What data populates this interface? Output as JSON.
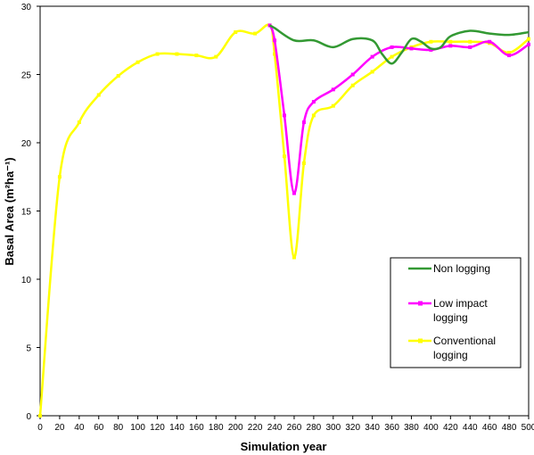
{
  "chart_data": {
    "type": "line",
    "xlabel": "Simulation year",
    "ylabel": "Basal Area (m²ha⁻¹)",
    "xlim": [
      0,
      500
    ],
    "ylim": [
      0,
      30
    ],
    "xticks": [
      0,
      20,
      40,
      60,
      80,
      100,
      120,
      140,
      160,
      180,
      200,
      220,
      240,
      260,
      280,
      300,
      320,
      340,
      360,
      380,
      400,
      420,
      440,
      460,
      480,
      500
    ],
    "yticks": [
      0,
      5,
      10,
      15,
      20,
      25,
      30
    ],
    "grid": false,
    "legend_position": "right",
    "series": [
      {
        "name": "Non logging",
        "color": "#339933",
        "markers": false,
        "x": [
          235,
          240,
          260,
          280,
          300,
          320,
          340,
          350,
          360,
          370,
          380,
          390,
          400,
          410,
          420,
          440,
          460,
          480,
          500
        ],
        "y": [
          28.6,
          28.4,
          27.5,
          27.5,
          27.0,
          27.6,
          27.5,
          26.5,
          25.8,
          26.6,
          27.6,
          27.4,
          26.9,
          27.0,
          27.8,
          28.2,
          28.0,
          27.9,
          28.1
        ]
      },
      {
        "name": "Low impact logging",
        "color": "#ff00ff",
        "markers": true,
        "x": [
          235,
          240,
          250,
          260,
          270,
          280,
          300,
          320,
          340,
          360,
          380,
          400,
          420,
          440,
          460,
          480,
          500
        ],
        "y": [
          28.6,
          27.5,
          22.0,
          16.3,
          21.5,
          23.0,
          23.9,
          25.0,
          26.3,
          27.0,
          26.9,
          26.8,
          27.1,
          27.0,
          27.4,
          26.4,
          27.2
        ]
      },
      {
        "name": "Conventional logging",
        "color": "#ffff00",
        "markers": true,
        "x": [
          0,
          20,
          40,
          60,
          80,
          100,
          120,
          140,
          160,
          180,
          200,
          220,
          235,
          240,
          250,
          260,
          270,
          280,
          300,
          320,
          340,
          360,
          380,
          400,
          420,
          440,
          460,
          480,
          500
        ],
        "y": [
          0,
          17.5,
          21.5,
          23.5,
          24.9,
          25.9,
          26.5,
          26.5,
          26.4,
          26.3,
          28.1,
          28.0,
          28.6,
          26.5,
          19.0,
          11.6,
          18.5,
          22.0,
          22.7,
          24.2,
          25.2,
          26.3,
          27.0,
          27.4,
          27.4,
          27.4,
          27.3,
          26.6,
          27.6
        ]
      }
    ]
  },
  "legend": {
    "items": [
      {
        "lines": [
          "Non logging"
        ],
        "color": "#339933",
        "markers": false
      },
      {
        "lines": [
          "Low impact",
          "logging"
        ],
        "color": "#ff00ff",
        "markers": true
      },
      {
        "lines": [
          "Conventional",
          "logging"
        ],
        "color": "#ffff00",
        "markers": true
      }
    ]
  }
}
